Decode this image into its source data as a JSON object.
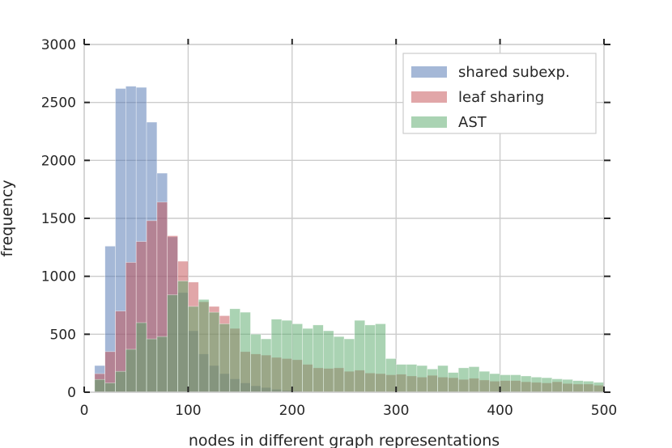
{
  "chart_data": {
    "type": "bar",
    "xlabel": "nodes in different graph representations",
    "ylabel": "frequency",
    "xlim": [
      0,
      500
    ],
    "ylim": [
      0,
      3000
    ],
    "xticks": [
      0,
      100,
      200,
      300,
      400,
      500
    ],
    "yticks": [
      0,
      500,
      1000,
      1500,
      2000,
      2500,
      3000
    ],
    "x_tick_labels": [
      "0",
      "100",
      "200",
      "300",
      "400",
      "500"
    ],
    "y_tick_labels": [
      "0",
      "500",
      "1000",
      "1500",
      "2000",
      "2500",
      "3000"
    ],
    "grid": true,
    "legend_position": "top-right",
    "series": [
      {
        "name": "shared subexp.",
        "color": "#4c72b0",
        "bin_start": 10,
        "bin_width": 10,
        "values": [
          230,
          1260,
          2620,
          2640,
          2630,
          2330,
          1890,
          1340,
          860,
          530,
          330,
          230,
          160,
          115,
          80,
          55,
          40,
          25,
          15,
          10
        ]
      },
      {
        "name": "leaf sharing",
        "color": "#c44e52",
        "bin_start": 10,
        "bin_width": 10,
        "values": [
          160,
          350,
          700,
          1120,
          1300,
          1480,
          1640,
          1350,
          1130,
          950,
          780,
          740,
          660,
          550,
          350,
          330,
          320,
          300,
          290,
          280,
          240,
          210,
          205,
          210,
          180,
          190,
          165,
          160,
          150,
          155,
          140,
          130,
          145,
          130,
          125,
          110,
          120,
          105,
          95,
          100,
          100,
          90,
          85,
          80,
          90,
          75,
          70,
          70,
          60
        ]
      },
      {
        "name": "AST",
        "color": "#55a868",
        "bin_start": 10,
        "bin_width": 10,
        "values": [
          110,
          80,
          180,
          370,
          600,
          460,
          480,
          840,
          960,
          740,
          800,
          690,
          590,
          720,
          690,
          500,
          460,
          630,
          620,
          590,
          550,
          580,
          530,
          480,
          460,
          620,
          580,
          590,
          290,
          240,
          240,
          230,
          200,
          230,
          170,
          210,
          220,
          180,
          160,
          150,
          150,
          140,
          130,
          125,
          115,
          110,
          100,
          95,
          85
        ]
      }
    ]
  }
}
